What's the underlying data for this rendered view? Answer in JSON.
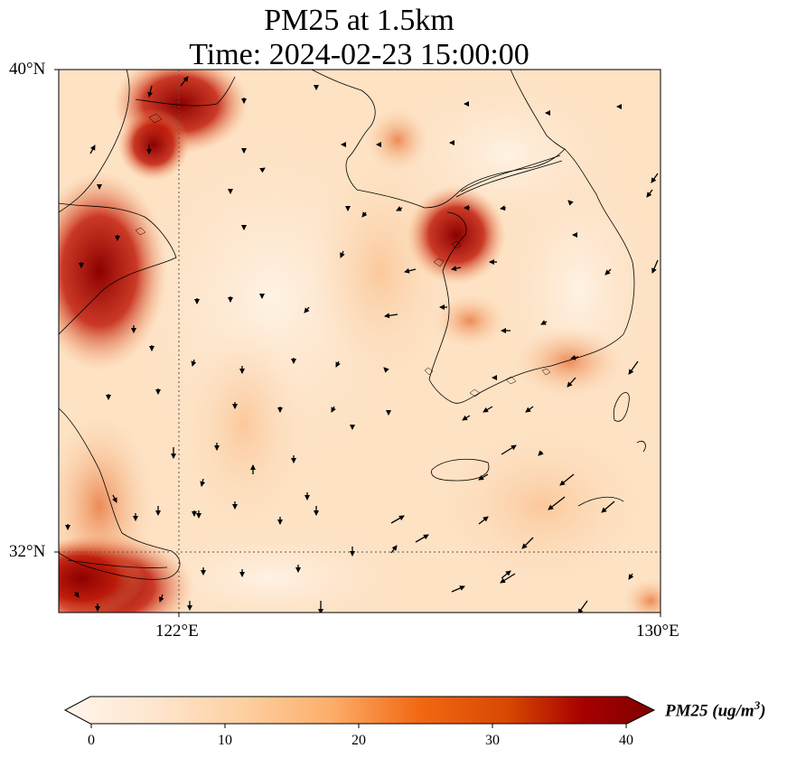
{
  "title": {
    "line1": "PM25 at 1.5km",
    "line2": "Time: 2024-02-23 15:00:00"
  },
  "map": {
    "lat_labels": [
      "40°N",
      "32°N"
    ],
    "lon_labels": [
      "122°E",
      "130°E"
    ],
    "extent": {
      "lon_min": 120,
      "lon_max": 130,
      "lat_min": 31,
      "lat_max": 40
    }
  },
  "colorbar": {
    "ticks": [
      "0",
      "10",
      "20",
      "30",
      "40"
    ],
    "label_main": "PM25 (ug/m",
    "label_sup": "3",
    "label_end": ")",
    "vmin": 0,
    "vmax": 40,
    "colormap": [
      "#fff5eb",
      "#fee6ce",
      "#fdd0a2",
      "#fdae6b",
      "#f16913",
      "#d94801",
      "#a60000",
      "#7f0000"
    ]
  },
  "colors": {
    "land_line": "#000000",
    "grid_line": "#555555",
    "arrow": "#000000"
  }
}
